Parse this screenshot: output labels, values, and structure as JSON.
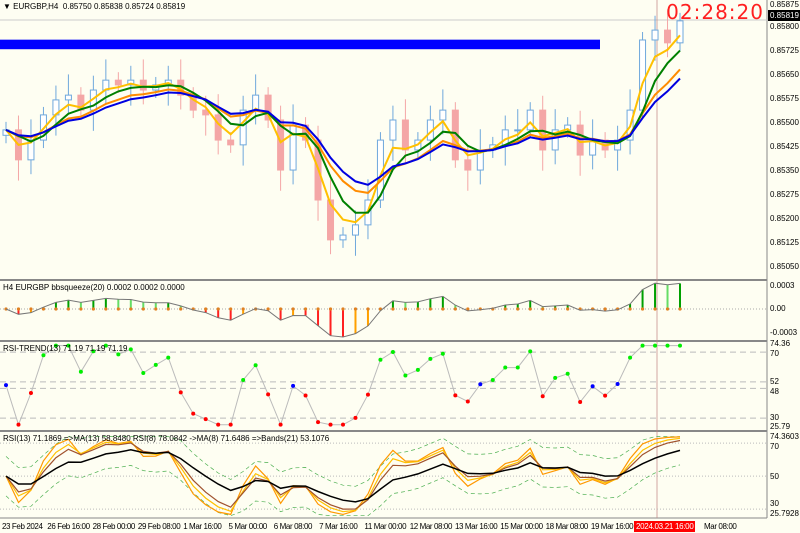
{
  "header": {
    "symbol_label": "EURGBP,H4",
    "ohlc": "0.85750 0.85838 0.85724 0.85819",
    "menu_icon": "triangle-down-icon"
  },
  "clock": "02:28:20",
  "current_price": "0.85819",
  "colors": {
    "bull": "#6fa8dc",
    "bear": "#f4a6a6",
    "ma_fast": "#ffc000",
    "ma_mid": "#ff8c00",
    "ma_green": "#008000",
    "ma_blue": "#0000e0",
    "zone": "#0000ff",
    "clock": "#ff2020"
  },
  "panels": {
    "bbsqueeze": {
      "label": "H4 EURGBP bbsqueeze(20) 0.0002 0.0002 0.0000",
      "ticks": [
        "0.0003",
        "0.00",
        "-0.0003"
      ]
    },
    "rsi_trend": {
      "label": "RSI-TREND(13) 71.19 71.19 71.19",
      "ticks": [
        "74.36",
        "70",
        "52",
        "48",
        "30",
        "25.79"
      ]
    },
    "rsi": {
      "label": "RSI(13) 71.1869  =>MA(13) 58.8480  RSI(8) 78.0842  ->MA(8) 71.6486  =>Bands(21) 53.1076",
      "ticks": [
        "74.3603",
        "70",
        "50",
        "30",
        "25.7928"
      ]
    }
  },
  "chart_data": {
    "type": "candlestick",
    "title": "EURGBP,H4",
    "ylim": [
      0.8504,
      0.8588
    ],
    "y_ticks": [
      "0.85875",
      "0.85800",
      "0.85725",
      "0.85650",
      "0.85575",
      "0.85500",
      "0.85425",
      "0.85350",
      "0.85275",
      "0.85200",
      "0.85125",
      "0.85050"
    ],
    "x_ticks": [
      "23 Feb 2024",
      "26 Feb 16:00",
      "28 Feb 00:00",
      "29 Feb 08:00",
      "1 Mar 16:00",
      "5 Mar 00:00",
      "6 Mar 08:00",
      "7 Mar 16:00",
      "11 Mar 00:00",
      "12 Mar 08:00",
      "13 Mar 16:00",
      "15 Mar 00:00",
      "18 Mar 08:00",
      "19 Mar 16:00",
      "2024.03.21 16:00",
      "Mar 08:00"
    ],
    "current_time_label": "2024.03.21 16:00",
    "closes": [
      0.85477,
      0.85383,
      0.85445,
      0.85524,
      0.85571,
      0.85586,
      0.85539,
      0.85602,
      0.85633,
      0.85618,
      0.85633,
      0.85602,
      0.85618,
      0.85633,
      0.85586,
      0.85539,
      0.85524,
      0.85445,
      0.8543,
      0.85539,
      0.85586,
      0.85508,
      0.85351,
      0.85492,
      0.85445,
      0.85257,
      0.85132,
      0.85147,
      0.85179,
      0.85257,
      0.85445,
      0.85508,
      0.85414,
      0.85445,
      0.85508,
      0.85539,
      0.85383,
      0.85351,
      0.85414,
      0.8543,
      0.85477,
      0.85477,
      0.85539,
      0.85414,
      0.85477,
      0.85492,
      0.85398,
      0.85445,
      0.85414,
      0.85445,
      0.85539,
      0.85759,
      0.8579,
      0.8575,
      0.85819
    ],
    "first_open": 0.8546,
    "zone": {
      "price_top": 0.8576,
      "price_bottom": 0.8573
    }
  }
}
